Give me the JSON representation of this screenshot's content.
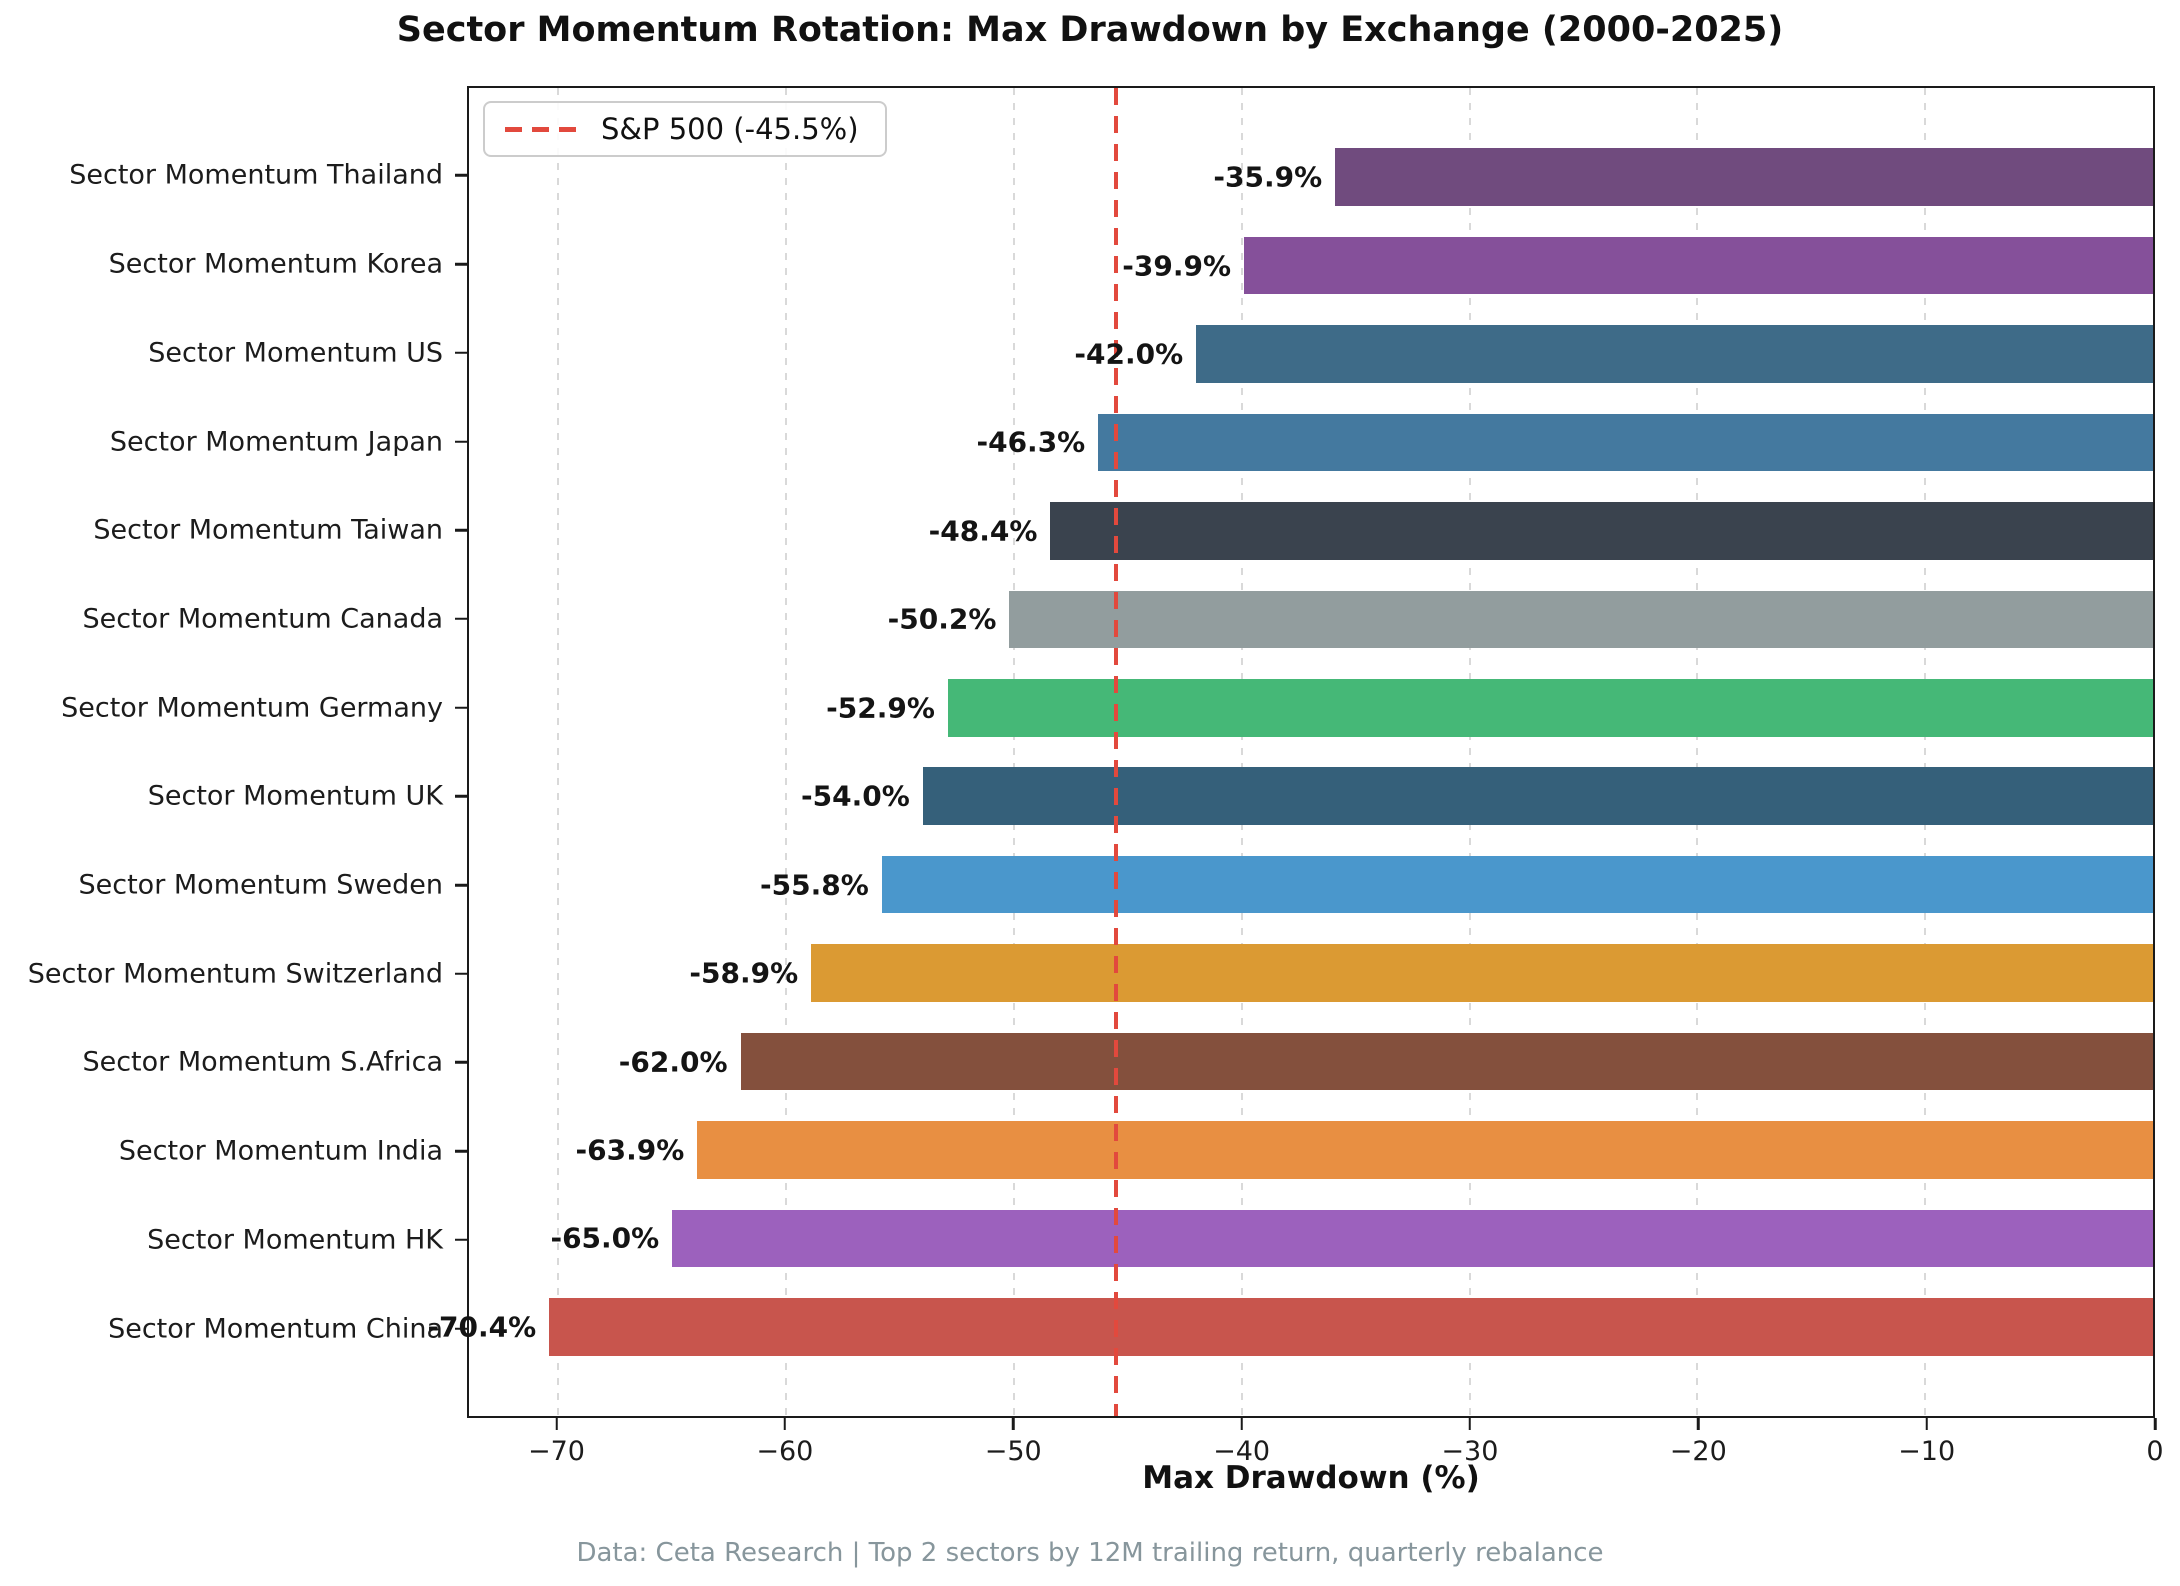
{
  "title": "Sector Momentum Rotation: Max Drawdown by Exchange (2000-2025)",
  "xlabel": "Max Drawdown (%)",
  "footer": "Data: Ceta Research | Top 2 sectors by 12M trailing return, quarterly rebalance",
  "legend": {
    "label": "S&P 500 (-45.5%)",
    "line_color": "#e2493d"
  },
  "colors": {
    "reference_red": "#e2493d",
    "spine": "#1a1a1a",
    "grid": "#d9d9d9",
    "footer_gray": "#87969c"
  },
  "chart_data": {
    "type": "bar",
    "orientation": "horizontal",
    "title": "Sector Momentum Rotation: Max Drawdown by Exchange (2000-2025)",
    "xlabel": "Max Drawdown (%)",
    "ylabel": "",
    "xlim": [
      -73.92,
      0
    ],
    "grid": "vertical dashed",
    "legend_position": "upper left",
    "categories": [
      "Sector Momentum Thailand",
      "Sector Momentum Korea",
      "Sector Momentum US",
      "Sector Momentum Japan",
      "Sector Momentum Taiwan",
      "Sector Momentum Canada",
      "Sector Momentum Germany",
      "Sector Momentum UK",
      "Sector Momentum Sweden",
      "Sector Momentum Switzerland",
      "Sector Momentum S.Africa",
      "Sector Momentum India",
      "Sector Momentum HK",
      "Sector Momentum China"
    ],
    "series": [
      {
        "name": "Max Drawdown (%)",
        "values": [
          -35.9,
          -39.9,
          -42.0,
          -46.3,
          -48.4,
          -50.2,
          -52.9,
          -54.0,
          -55.8,
          -58.9,
          -62.0,
          -63.9,
          -65.0,
          -70.4
        ]
      }
    ],
    "reference_line": {
      "label": "S&P 500 (-45.5%)",
      "value": -45.5,
      "color": "#e2493d",
      "style": "dashed"
    },
    "x_ticks": [
      {
        "value": -70,
        "label": "−70"
      },
      {
        "value": -60,
        "label": "−60"
      },
      {
        "value": -50,
        "label": "−50"
      },
      {
        "value": -40,
        "label": "−40"
      },
      {
        "value": -30,
        "label": "−30"
      },
      {
        "value": -20,
        "label": "−20"
      },
      {
        "value": -10,
        "label": "−10"
      },
      {
        "value": 0,
        "label": "0"
      }
    ],
    "items": [
      {
        "label": "Sector Momentum Thailand",
        "value": -35.9,
        "value_label": "-35.9%",
        "color": "#704b7e"
      },
      {
        "label": "Sector Momentum Korea",
        "value": -39.9,
        "value_label": "-39.9%",
        "color": "#85509a"
      },
      {
        "label": "Sector Momentum US",
        "value": -42.0,
        "value_label": "-42.0%",
        "color": "#3e6b88"
      },
      {
        "label": "Sector Momentum Japan",
        "value": -46.3,
        "value_label": "-46.3%",
        "color": "#44799f"
      },
      {
        "label": "Sector Momentum Taiwan",
        "value": -48.4,
        "value_label": "-48.4%",
        "color": "#3a434e"
      },
      {
        "label": "Sector Momentum Canada",
        "value": -50.2,
        "value_label": "-50.2%",
        "color": "#929d9e"
      },
      {
        "label": "Sector Momentum Germany",
        "value": -52.9,
        "value_label": "-52.9%",
        "color": "#45b877"
      },
      {
        "label": "Sector Momentum UK",
        "value": -54.0,
        "value_label": "-54.0%",
        "color": "#35607a"
      },
      {
        "label": "Sector Momentum Sweden",
        "value": -55.8,
        "value_label": "-55.8%",
        "color": "#4a97cc"
      },
      {
        "label": "Sector Momentum Switzerland",
        "value": -58.9,
        "value_label": "-58.9%",
        "color": "#db9a33"
      },
      {
        "label": "Sector Momentum S.Africa",
        "value": -62.0,
        "value_label": "-62.0%",
        "color": "#84503d"
      },
      {
        "label": "Sector Momentum India",
        "value": -63.9,
        "value_label": "-63.9%",
        "color": "#e88f42"
      },
      {
        "label": "Sector Momentum HK",
        "value": -65.0,
        "value_label": "-65.0%",
        "color": "#9c61bd"
      },
      {
        "label": "Sector Momentum China",
        "value": -70.4,
        "value_label": "-70.4%",
        "color": "#c8554d"
      }
    ]
  }
}
